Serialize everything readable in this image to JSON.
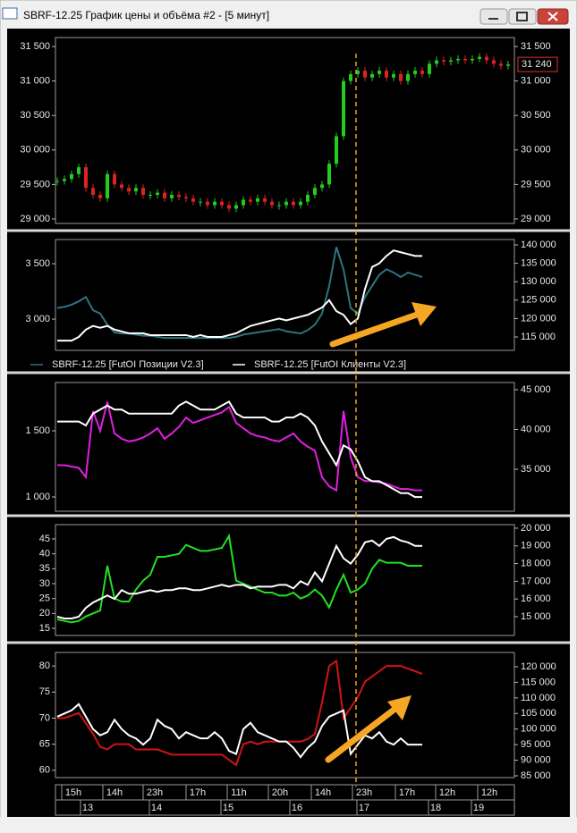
{
  "window_title": "SBRF-12.25 График цены и объёма #2 - [5 минут]",
  "time_axis": {
    "hours": [
      "15h",
      "14h",
      "23h",
      "17h",
      "11h",
      "20h",
      "14h",
      "23h",
      "17h",
      "12h",
      "12h"
    ],
    "days": [
      "13",
      "14",
      "15",
      "16",
      "17",
      "18",
      "19"
    ]
  },
  "chart_data": [
    {
      "type": "candlestick",
      "color_up": "#22cc22",
      "color_down": "#dd2222",
      "values": [
        29550,
        29580,
        29650,
        29750,
        29450,
        29350,
        29300,
        29650,
        29500,
        29450,
        29400,
        29450,
        29350,
        29350,
        29380,
        29300,
        29350,
        29320,
        29300,
        29250,
        29250,
        29200,
        29250,
        29200,
        29150,
        29200,
        29280,
        29250,
        29300,
        29250,
        29200,
        29200,
        29250,
        29200,
        29250,
        29350,
        29450,
        29500,
        29800,
        30200,
        31000,
        31100,
        31150,
        31050,
        31100,
        31150,
        31050,
        31100,
        31000,
        31100,
        31150,
        31100,
        31250,
        31300,
        31280,
        31300,
        31320,
        31300,
        31320,
        31350,
        31300,
        31250,
        31220,
        31240
      ],
      "price_label": "31 240",
      "ylim": [
        28935,
        31630
      ],
      "yticks": [
        {
          "value": 29000,
          "label": "29 000"
        },
        {
          "value": 29500,
          "label": "29 500"
        },
        {
          "value": 30000,
          "label": "30 000"
        },
        {
          "value": 30500,
          "label": "30 500"
        },
        {
          "value": 31000,
          "label": "31 000"
        },
        {
          "value": 31500,
          "label": "31 500"
        }
      ],
      "y2lim": [
        28935,
        31630
      ],
      "y2ticks": [
        {
          "value": 29000,
          "label": "29 000"
        },
        {
          "value": 29500,
          "label": "29 500"
        },
        {
          "value": 30000,
          "label": "30 000"
        },
        {
          "value": 30500,
          "label": "30 500"
        },
        {
          "value": 31000,
          "label": "31 000"
        },
        {
          "value": 31500,
          "label": "31 500"
        }
      ]
    },
    {
      "type": "line",
      "ylim": [
        2718,
        3718
      ],
      "yticks": [
        {
          "value": 3000,
          "label": "3 000"
        },
        {
          "value": 3500,
          "label": "3 500"
        }
      ],
      "y2lim": [
        111359,
        141456
      ],
      "y2ticks": [
        {
          "value": 115000,
          "label": "115 000"
        },
        {
          "value": 120000,
          "label": "120 000"
        },
        {
          "value": 125000,
          "label": "125 000"
        },
        {
          "value": 130000,
          "label": "130 000"
        },
        {
          "value": 135000,
          "label": "135 000"
        },
        {
          "value": 140000,
          "label": "140 000"
        }
      ],
      "series": [
        {
          "name": "SBRF-12.25 [FutOI Позиции V2.3]",
          "color": "#2e7480",
          "axis": "y",
          "values": [
            3100,
            3110,
            3130,
            3160,
            3200,
            3080,
            3050,
            2950,
            2880,
            2870,
            2870,
            2860,
            2850,
            2850,
            2840,
            2830,
            2830,
            2830,
            2830,
            2830,
            2830,
            2830,
            2830,
            2830,
            2830,
            2840,
            2860,
            2870,
            2880,
            2890,
            2900,
            2910,
            2890,
            2880,
            2870,
            2900,
            2950,
            3050,
            3300,
            3650,
            3450,
            3100,
            3050,
            3200,
            3300,
            3400,
            3450,
            3420,
            3380,
            3420,
            3400,
            3380
          ]
        },
        {
          "name": "SBRF-12.25 [FutOI Клиенты V2.3]",
          "color": "#ffffff",
          "axis": "y2",
          "values": [
            114000,
            114000,
            114000,
            115000,
            117000,
            118000,
            117500,
            118000,
            117000,
            116500,
            116000,
            116000,
            116000,
            115500,
            115500,
            115500,
            115500,
            115500,
            115500,
            115000,
            115500,
            115000,
            115000,
            115000,
            115500,
            116000,
            117000,
            118000,
            118500,
            119000,
            119500,
            120000,
            119500,
            120000,
            120500,
            121000,
            122000,
            123000,
            125000,
            122000,
            121000,
            118500,
            120000,
            128000,
            134000,
            135000,
            137000,
            138500,
            138000,
            137500,
            137000,
            137000
          ]
        }
      ]
    },
    {
      "type": "line",
      "ylim": [
        892,
        1865
      ],
      "yticks": [
        {
          "value": 1000,
          "label": "1 000"
        },
        {
          "value": 1500,
          "label": "1 500"
        }
      ],
      "y2lim": [
        29719,
        45899
      ],
      "y2ticks": [
        {
          "value": 35000,
          "label": "35 000"
        },
        {
          "value": 40000,
          "label": "40 000"
        },
        {
          "value": 45000,
          "label": "45 000"
        }
      ],
      "series": [
        {
          "color": "#e020e0",
          "axis": "y",
          "values": [
            1240,
            1240,
            1230,
            1220,
            1150,
            1650,
            1500,
            1720,
            1480,
            1440,
            1420,
            1430,
            1450,
            1480,
            1520,
            1440,
            1480,
            1530,
            1600,
            1560,
            1580,
            1600,
            1620,
            1640,
            1680,
            1560,
            1520,
            1480,
            1460,
            1450,
            1430,
            1420,
            1450,
            1480,
            1420,
            1380,
            1350,
            1150,
            1080,
            1050,
            1650,
            1300,
            1150,
            1120,
            1120,
            1110,
            1100,
            1080,
            1060,
            1060,
            1050,
            1050
          ]
        },
        {
          "color": "#ffffff",
          "axis": "y2",
          "values": [
            41000,
            41000,
            41000,
            41000,
            40500,
            42000,
            42500,
            43000,
            42500,
            42500,
            42000,
            42000,
            42000,
            42000,
            42000,
            42000,
            42000,
            43000,
            43500,
            43000,
            42500,
            42500,
            42500,
            43000,
            43500,
            42000,
            41500,
            41500,
            41500,
            41500,
            41000,
            41000,
            41500,
            41500,
            42000,
            41500,
            40500,
            38500,
            37000,
            35500,
            38000,
            37500,
            36000,
            34000,
            33500,
            33500,
            33000,
            32500,
            32000,
            32000,
            31500,
            31500
          ]
        }
      ]
    },
    {
      "type": "line",
      "ylim": [
        12.6,
        49.8
      ],
      "yticks": [
        15,
        20,
        25,
        30,
        35,
        40,
        45
      ],
      "y2lim": [
        13939,
        20200
      ],
      "y2ticks": [
        {
          "value": 15000,
          "label": "15 000"
        },
        {
          "value": 16000,
          "label": "16 000"
        },
        {
          "value": 17000,
          "label": "17 000"
        },
        {
          "value": 18000,
          "label": "18 000"
        },
        {
          "value": 19000,
          "label": "19 000"
        },
        {
          "value": 20000,
          "label": "20 000"
        }
      ],
      "series": [
        {
          "color": "#22e022",
          "axis": "y",
          "values": [
            18,
            17.5,
            17,
            17.5,
            19,
            20,
            21,
            36,
            25,
            24,
            24,
            28,
            31,
            33,
            39,
            39,
            39.5,
            40,
            43,
            42,
            41,
            41,
            41.5,
            42,
            46,
            31,
            30,
            29,
            28,
            27,
            27,
            26,
            26,
            27,
            25,
            26,
            28,
            26,
            22,
            28,
            33,
            27,
            28,
            30,
            35,
            38,
            37,
            37,
            37,
            36,
            36,
            36
          ]
        },
        {
          "color": "#ffffff",
          "axis": "y2",
          "values": [
            15000,
            14900,
            14900,
            15000,
            15500,
            15800,
            16000,
            16200,
            16000,
            16500,
            16300,
            16300,
            16400,
            16500,
            16400,
            16500,
            16500,
            16600,
            16600,
            16500,
            16500,
            16600,
            16700,
            16800,
            16700,
            16800,
            16800,
            16600,
            16700,
            16700,
            16700,
            16800,
            16800,
            16600,
            17000,
            16800,
            17500,
            17000,
            18000,
            19000,
            18300,
            18000,
            18500,
            19200,
            19300,
            19000,
            19400,
            19500,
            19300,
            19200,
            19000,
            19000
          ]
        }
      ]
    },
    {
      "type": "line",
      "ylim": [
        58.6,
        82.6
      ],
      "yticks": [
        60,
        65,
        70,
        75,
        80
      ],
      "y2lim": [
        84426,
        124590
      ],
      "y2ticks": [
        {
          "value": 85000,
          "label": "85 000"
        },
        {
          "value": 90000,
          "label": "90 000"
        },
        {
          "value": 95000,
          "label": "95 000"
        },
        {
          "value": 100000,
          "label": "100 000"
        },
        {
          "value": 105000,
          "label": "105 000"
        },
        {
          "value": 110000,
          "label": "110 000"
        },
        {
          "value": 115000,
          "label": "115 000"
        },
        {
          "value": 120000,
          "label": "120 000"
        }
      ],
      "series": [
        {
          "color": "#d01414",
          "axis": "y",
          "values": [
            70,
            70,
            70.5,
            71,
            69,
            67,
            64.5,
            64,
            65,
            65,
            65,
            64,
            64,
            64,
            64,
            63.5,
            63,
            63,
            63,
            63,
            63,
            63,
            63,
            63,
            62,
            61,
            65,
            65.5,
            65,
            65.5,
            65.5,
            65.5,
            65.5,
            65.5,
            65.5,
            66,
            67,
            73,
            80,
            81,
            70,
            72,
            74,
            77,
            78,
            79,
            80,
            80,
            80,
            79.5,
            79,
            78.5
          ]
        },
        {
          "color": "#ffffff",
          "axis": "y2",
          "values": [
            104000,
            105000,
            106000,
            108000,
            104000,
            100000,
            98000,
            99000,
            103000,
            100000,
            98000,
            97000,
            95000,
            97000,
            103000,
            101000,
            100000,
            97000,
            99000,
            98000,
            97000,
            97000,
            99000,
            97000,
            93000,
            92000,
            100000,
            102000,
            99000,
            98000,
            97000,
            96000,
            96000,
            94000,
            91000,
            94000,
            96000,
            101000,
            104000,
            105000,
            106000,
            92000,
            95000,
            98000,
            97000,
            99000,
            96000,
            95000,
            97000,
            95000,
            95000,
            95000
          ]
        }
      ]
    }
  ]
}
